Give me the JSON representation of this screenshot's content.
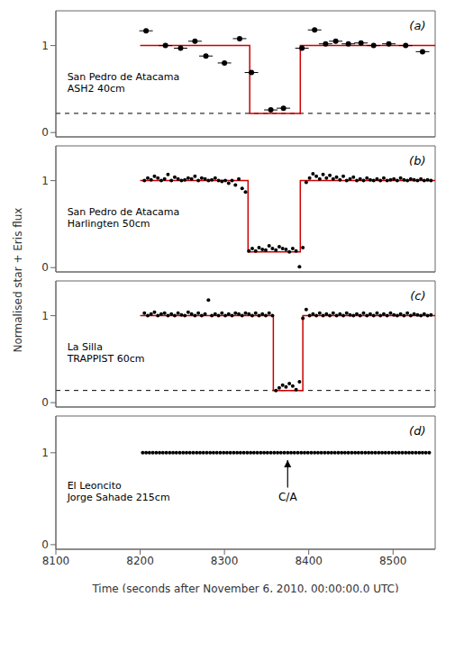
{
  "chart_data": [
    {
      "type": "scatter",
      "title": "(a)",
      "tick_labels": "y",
      "annotations": [
        {
          "text": "San Pedro de Atacama"
        },
        {
          "text": "ASH2 40cm"
        }
      ],
      "xlim": [
        8100,
        8550
      ],
      "xticks": [
        8100,
        8200,
        8300,
        8400,
        8500
      ],
      "ylim": [
        -0.05,
        1.4
      ],
      "yticks": [
        0,
        1
      ],
      "series": [
        {
          "type": "hline",
          "line_style": "dashed",
          "color": "#000000",
          "values": [
            0.22
          ]
        },
        {
          "type": "line",
          "color": "#cc0000",
          "x": [
            8200,
            8330,
            8330,
            8390,
            8390,
            8550
          ],
          "values": [
            1.0,
            1.0,
            0.22,
            0.22,
            1.0,
            1.0
          ]
        },
        {
          "type": "scatter",
          "marker": "circle",
          "color": "#000000",
          "x": [
            8207,
            8230,
            8248,
            8265,
            8278,
            8300,
            8318,
            8332,
            8355,
            8370,
            8392,
            8407,
            8420,
            8432,
            8447,
            8462,
            8477,
            8495,
            8515,
            8535
          ],
          "values": [
            1.17,
            1.0,
            0.97,
            1.05,
            0.88,
            0.8,
            1.08,
            0.69,
            0.26,
            0.28,
            0.97,
            1.18,
            1.02,
            1.05,
            1.02,
            1.03,
            1.0,
            1.02,
            1.0,
            0.93
          ],
          "xerr": [
            8,
            8,
            8,
            8,
            8,
            8,
            8,
            8,
            8,
            8,
            8,
            8,
            8,
            8,
            8,
            8,
            8,
            8,
            8,
            8
          ]
        }
      ]
    },
    {
      "type": "scatter",
      "title": "(b)",
      "tick_labels": "y",
      "annotations": [
        {
          "text": "San Pedro de Atacama"
        },
        {
          "text": "Harlingten 50cm"
        }
      ],
      "xlim": [
        8100,
        8550
      ],
      "xticks": [
        8100,
        8200,
        8300,
        8400,
        8500
      ],
      "ylim": [
        -0.05,
        1.4
      ],
      "yticks": [
        0,
        1
      ],
      "series": [
        {
          "type": "line",
          "color": "#cc0000",
          "x": [
            8200,
            8328,
            8328,
            8390,
            8390,
            8550
          ],
          "values": [
            1.0,
            1.0,
            0.18,
            0.18,
            1.0,
            1.0
          ]
        },
        {
          "type": "scatter",
          "marker": "circle",
          "color": "#000000",
          "x": [
            8205,
            8209,
            8213,
            8217,
            8221,
            8225,
            8229,
            8233,
            8237,
            8241,
            8245,
            8249,
            8253,
            8257,
            8261,
            8265,
            8269,
            8273,
            8277,
            8281,
            8285,
            8289,
            8293,
            8297,
            8301,
            8305,
            8309,
            8313,
            8317,
            8321,
            8325,
            8329,
            8333,
            8337,
            8341,
            8345,
            8349,
            8353,
            8357,
            8361,
            8365,
            8369,
            8373,
            8377,
            8381,
            8385,
            8389,
            8393,
            8397,
            8401,
            8405,
            8409,
            8413,
            8417,
            8421,
            8425,
            8429,
            8433,
            8437,
            8441,
            8445,
            8449,
            8453,
            8457,
            8461,
            8465,
            8469,
            8473,
            8477,
            8481,
            8485,
            8489,
            8493,
            8497,
            8501,
            8505,
            8509,
            8513,
            8517,
            8521,
            8525,
            8529,
            8533,
            8537,
            8541,
            8545
          ],
          "values": [
            1.0,
            1.03,
            1.01,
            1.05,
            1.03,
            1.0,
            1.02,
            1.07,
            1.0,
            1.04,
            1.02,
            1.0,
            1.01,
            1.03,
            1.02,
            1.05,
            1.0,
            1.03,
            1.02,
            1.0,
            1.01,
            1.03,
            1.0,
            0.99,
            1.0,
            0.97,
            1.0,
            0.95,
            1.02,
            0.91,
            0.87,
            0.19,
            0.22,
            0.19,
            0.23,
            0.21,
            0.2,
            0.25,
            0.22,
            0.2,
            0.24,
            0.22,
            0.21,
            0.18,
            0.22,
            0.19,
            0.01,
            0.23,
            0.98,
            1.03,
            1.08,
            1.05,
            1.02,
            1.07,
            1.03,
            1.06,
            1.02,
            1.04,
            1.01,
            1.05,
            1.0,
            1.02,
            1.04,
            1.0,
            1.02,
            1.0,
            1.03,
            1.01,
            1.0,
            1.02,
            1.0,
            1.03,
            1.0,
            1.01,
            1.02,
            1.0,
            1.03,
            1.01,
            1.0,
            1.02,
            1.01,
            1.0,
            1.02,
            1.0,
            1.01,
            1.0
          ]
        }
      ]
    },
    {
      "type": "scatter",
      "title": "(c)",
      "tick_labels": "y",
      "annotations": [
        {
          "text": "La Silla"
        },
        {
          "text": "TRAPPIST 60cm"
        }
      ],
      "xlim": [
        8100,
        8550
      ],
      "xticks": [
        8100,
        8200,
        8300,
        8400,
        8500
      ],
      "ylim": [
        -0.05,
        1.4
      ],
      "yticks": [
        0,
        1
      ],
      "series": [
        {
          "type": "hline",
          "line_style": "dashed",
          "color": "#000000",
          "values": [
            0.14
          ]
        },
        {
          "type": "line",
          "color": "#cc0000",
          "x": [
            8200,
            8358,
            8358,
            8393,
            8393,
            8550
          ],
          "values": [
            1.0,
            1.0,
            0.14,
            0.14,
            1.0,
            1.0
          ]
        },
        {
          "type": "scatter",
          "marker": "circle",
          "color": "#000000",
          "x": [
            8205,
            8209,
            8213,
            8217,
            8221,
            8225,
            8229,
            8233,
            8237,
            8241,
            8245,
            8249,
            8253,
            8257,
            8261,
            8265,
            8269,
            8273,
            8277,
            8281,
            8285,
            8289,
            8293,
            8297,
            8301,
            8305,
            8309,
            8313,
            8317,
            8321,
            8325,
            8329,
            8333,
            8337,
            8341,
            8345,
            8349,
            8353,
            8357,
            8361,
            8365,
            8369,
            8373,
            8377,
            8381,
            8385,
            8389,
            8393,
            8397,
            8401,
            8405,
            8409,
            8413,
            8417,
            8421,
            8425,
            8429,
            8433,
            8437,
            8441,
            8445,
            8449,
            8453,
            8457,
            8461,
            8465,
            8469,
            8473,
            8477,
            8481,
            8485,
            8489,
            8493,
            8497,
            8501,
            8505,
            8509,
            8513,
            8517,
            8521,
            8525,
            8529,
            8533,
            8537,
            8541,
            8545
          ],
          "values": [
            1.03,
            1.0,
            1.02,
            1.04,
            1.0,
            1.02,
            1.03,
            1.0,
            1.02,
            1.0,
            1.03,
            1.01,
            1.0,
            1.04,
            1.02,
            1.0,
            1.03,
            1.0,
            1.02,
            1.18,
            1.0,
            1.02,
            1.0,
            1.03,
            1.0,
            1.02,
            1.0,
            1.03,
            1.02,
            1.0,
            1.03,
            1.02,
            1.0,
            1.03,
            1.0,
            1.02,
            1.0,
            1.03,
            1.0,
            0.14,
            0.17,
            0.2,
            0.18,
            0.22,
            0.19,
            0.15,
            0.24,
            0.97,
            1.07,
            1.0,
            1.02,
            1.0,
            1.03,
            1.0,
            1.02,
            1.0,
            1.03,
            1.0,
            1.02,
            1.0,
            1.03,
            1.01,
            1.0,
            1.02,
            1.0,
            1.03,
            1.0,
            1.02,
            1.0,
            1.03,
            1.0,
            1.02,
            1.0,
            1.03,
            1.01,
            1.0,
            1.02,
            1.0,
            1.03,
            1.0,
            1.02,
            1.01,
            1.0,
            1.02,
            1.0,
            1.01
          ]
        }
      ]
    },
    {
      "type": "scatter",
      "title": "(d)",
      "xlabel": "Time (seconds after November 6, 2010, 00:00:00.0 UTC)",
      "ylabel": "Normalised star + Eris flux",
      "annotations": [
        {
          "text": "El Leoncito"
        },
        {
          "text": "Jorge Sahade 215cm"
        },
        {
          "text": "C/A",
          "x": 8375,
          "y": 0.57,
          "arrow_from": [
            8375,
            0.62
          ],
          "arrow_to": [
            8375,
            0.92
          ]
        }
      ],
      "xlim": [
        8100,
        8550
      ],
      "xticks": [
        8100,
        8200,
        8300,
        8400,
        8500
      ],
      "ylim": [
        -0.05,
        1.4
      ],
      "yticks": [
        0,
        1
      ],
      "series": [
        {
          "type": "scatter",
          "marker": "circle",
          "color": "#000000",
          "x": [
            8203,
            8207,
            8211,
            8215,
            8219,
            8223,
            8227,
            8231,
            8235,
            8239,
            8243,
            8247,
            8251,
            8255,
            8259,
            8263,
            8267,
            8271,
            8275,
            8279,
            8283,
            8287,
            8291,
            8295,
            8299,
            8303,
            8307,
            8311,
            8315,
            8319,
            8323,
            8327,
            8331,
            8335,
            8339,
            8343,
            8347,
            8351,
            8355,
            8359,
            8363,
            8367,
            8371,
            8375,
            8379,
            8383,
            8387,
            8391,
            8395,
            8399,
            8403,
            8407,
            8411,
            8415,
            8419,
            8423,
            8427,
            8431,
            8435,
            8439,
            8443,
            8447,
            8451,
            8455,
            8459,
            8463,
            8467,
            8471,
            8475,
            8479,
            8483,
            8487,
            8491,
            8495,
            8499,
            8503,
            8507,
            8511,
            8515,
            8519,
            8523,
            8527,
            8531,
            8535,
            8539,
            8543
          ],
          "values": [
            1.0,
            1.0,
            1.0,
            1.0,
            1.0,
            1.0,
            1.0,
            1.0,
            1.0,
            1.0,
            1.0,
            1.0,
            1.0,
            1.0,
            1.0,
            1.0,
            1.0,
            1.0,
            1.0,
            1.0,
            1.0,
            1.0,
            1.0,
            1.0,
            1.0,
            1.0,
            1.0,
            1.0,
            1.0,
            1.0,
            1.0,
            1.0,
            1.0,
            1.0,
            1.0,
            1.0,
            1.0,
            1.0,
            1.0,
            1.0,
            1.0,
            1.0,
            1.0,
            1.0,
            1.0,
            1.0,
            1.0,
            1.0,
            1.0,
            1.0,
            1.0,
            1.0,
            1.0,
            1.0,
            1.0,
            1.0,
            1.0,
            1.0,
            1.0,
            1.0,
            1.0,
            1.0,
            1.0,
            1.0,
            1.0,
            1.0,
            1.0,
            1.0,
            1.0,
            1.0,
            1.0,
            1.0,
            1.0,
            1.0,
            1.0,
            1.0,
            1.0,
            1.0,
            1.0,
            1.0,
            1.0,
            1.0,
            1.0,
            1.0,
            1.0,
            1.0
          ]
        }
      ]
    }
  ]
}
